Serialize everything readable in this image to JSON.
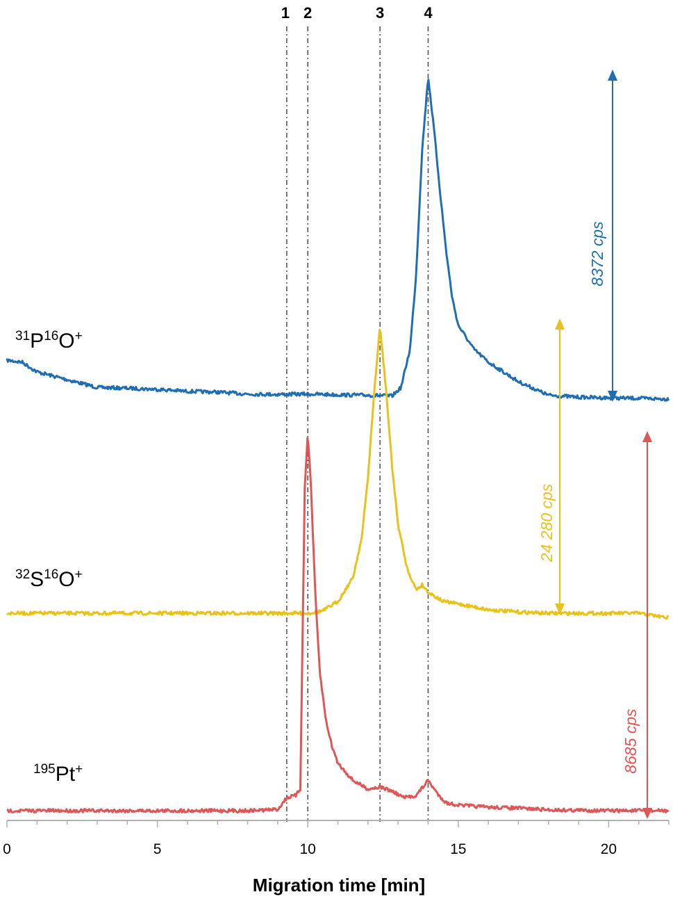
{
  "chart_data": {
    "type": "line",
    "xlabel": "Migration time [min]",
    "ylabel": "",
    "xlim": [
      0,
      22
    ],
    "x_ticks": [
      0,
      5,
      10,
      15,
      20
    ],
    "y_axis_shown": false,
    "grid": false,
    "peak_markers": [
      {
        "label": "1",
        "x": 9.3
      },
      {
        "label": "2",
        "x": 10.0
      },
      {
        "label": "3",
        "x": 12.4
      },
      {
        "label": "4",
        "x": 14.0
      }
    ],
    "series": [
      {
        "name": "31P16O+",
        "label_parts": [
          {
            "sup": "31"
          },
          {
            "text": "P"
          },
          {
            "sup": "16"
          },
          {
            "text": "O"
          },
          {
            "sup": "+"
          }
        ],
        "color": "#1f6db5",
        "amplitude_label": "8372 cps",
        "units": "cps",
        "baseline": 0,
        "x": [
          0,
          0.5,
          1,
          2,
          3,
          4,
          5,
          6,
          7,
          8,
          9,
          10,
          11,
          12,
          12.8,
          13.1,
          13.4,
          13.6,
          13.8,
          14.0,
          14.2,
          14.4,
          14.6,
          14.8,
          15.0,
          15.5,
          16,
          17,
          18,
          19,
          20,
          21,
          22
        ],
        "y": [
          1000,
          950,
          700,
          500,
          300,
          280,
          250,
          200,
          180,
          130,
          120,
          130,
          110,
          100,
          80,
          300,
          1300,
          3200,
          6400,
          8300,
          6900,
          5300,
          3800,
          2600,
          1900,
          1300,
          950,
          450,
          100,
          50,
          30,
          20,
          0
        ]
      },
      {
        "name": "32S16O+",
        "label_parts": [
          {
            "sup": "32"
          },
          {
            "text": "S"
          },
          {
            "sup": "16"
          },
          {
            "text": "O"
          },
          {
            "sup": "+"
          }
        ],
        "color": "#e8c21a",
        "amplitude_label": "24 280 cps",
        "units": "cps",
        "baseline": 0,
        "x": [
          0,
          2,
          4,
          6,
          8,
          9,
          10,
          10.5,
          11,
          11.5,
          11.8,
          12.0,
          12.2,
          12.4,
          12.6,
          12.8,
          13.0,
          13.3,
          13.6,
          13.8,
          14.0,
          14.5,
          15,
          16,
          17,
          18,
          19,
          20,
          21,
          22
        ],
        "y": [
          0,
          0,
          0,
          0,
          0,
          0,
          0,
          200,
          1000,
          3000,
          6500,
          11500,
          18500,
          24280,
          19000,
          12500,
          7500,
          3800,
          2000,
          2400,
          1800,
          1000,
          800,
          300,
          100,
          0,
          0,
          0,
          0,
          -400
        ]
      },
      {
        "name": "195Pt+",
        "label_parts": [
          {
            "sup": "195"
          },
          {
            "text": "Pt"
          },
          {
            "sup": "+"
          }
        ],
        "color": "#e05555",
        "amplitude_label": "8685 cps",
        "units": "cps",
        "baseline": 0,
        "x": [
          0,
          2,
          4,
          6,
          8,
          9,
          9.3,
          9.6,
          9.75,
          9.9,
          10.0,
          10.1,
          10.25,
          10.4,
          10.6,
          10.8,
          11,
          11.5,
          12,
          12.4,
          12.8,
          13.2,
          13.6,
          14.0,
          14.3,
          14.6,
          15,
          16,
          17,
          18,
          19,
          20,
          21,
          22
        ],
        "y": [
          0,
          0,
          0,
          0,
          0,
          30,
          300,
          350,
          500,
          7500,
          8685,
          7600,
          5000,
          3200,
          2100,
          1500,
          1100,
          700,
          500,
          550,
          450,
          300,
          350,
          700,
          400,
          180,
          130,
          80,
          60,
          20,
          10,
          0,
          0,
          0
        ]
      }
    ]
  }
}
